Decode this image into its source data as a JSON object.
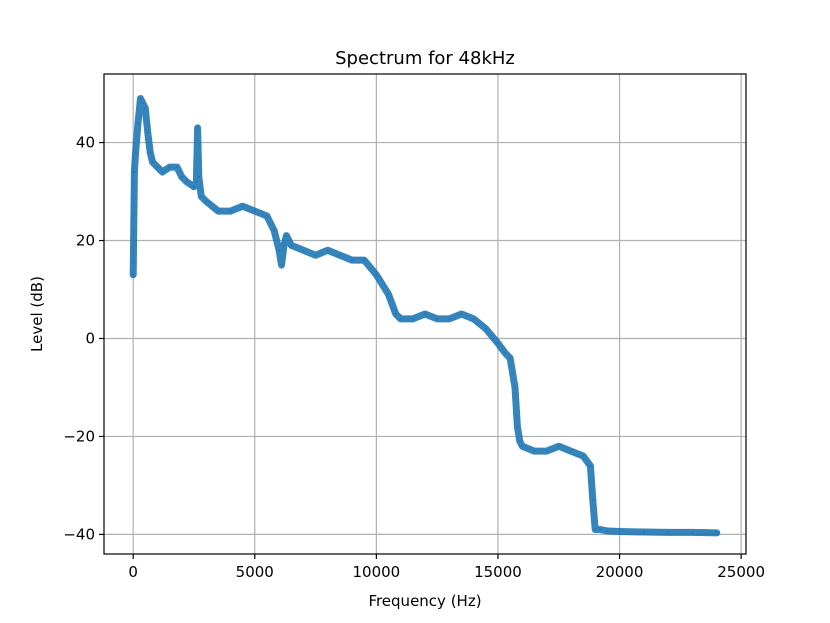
{
  "chart_data": {
    "type": "line",
    "title": "Spectrum for 48kHz",
    "xlabel": "Frequency (Hz)",
    "ylabel": "Level (dB)",
    "xlim": [
      -1200,
      25200
    ],
    "ylim": [
      -44,
      54
    ],
    "xticks": [
      0,
      5000,
      10000,
      15000,
      20000,
      25000
    ],
    "xtick_labels": [
      "0",
      "5000",
      "10000",
      "15000",
      "20000",
      "25000"
    ],
    "yticks": [
      -40,
      -20,
      0,
      20,
      40
    ],
    "ytick_labels": [
      "−40",
      "−20",
      "0",
      "20",
      "40"
    ],
    "grid": true,
    "line_color": "#1f77b4",
    "series": [
      {
        "x": [
          0,
          50,
          100,
          200,
          300,
          400,
          500,
          600,
          700,
          800,
          1000,
          1200,
          1500,
          1800,
          2000,
          2200,
          2500,
          2600,
          2650,
          2700,
          2800,
          3000,
          3500,
          4000,
          4500,
          5000,
          5500,
          5800,
          6000,
          6100,
          6200,
          6300,
          6500,
          7000,
          7500,
          8000,
          8500,
          9000,
          9500,
          10000,
          10500,
          10800,
          11000,
          11500,
          12000,
          12500,
          13000,
          13500,
          14000,
          14500,
          15000,
          15300,
          15500,
          15700,
          15800,
          15900,
          16000,
          16500,
          17000,
          17500,
          18000,
          18500,
          18800,
          18900,
          19000,
          19200,
          19500,
          20000,
          21000,
          22000,
          23000,
          24000
        ],
        "y": [
          13,
          34,
          38,
          44,
          49,
          48,
          47,
          42,
          38,
          36,
          35,
          34,
          35,
          35,
          33,
          32,
          31,
          32,
          43,
          33,
          29,
          28,
          26,
          26,
          27,
          26,
          25,
          22,
          18,
          15,
          19,
          21,
          19,
          18,
          17,
          18,
          17,
          16,
          16,
          13,
          9,
          5,
          4,
          4,
          5,
          4,
          4,
          5,
          4,
          2,
          -1,
          -3,
          -4,
          -10,
          -18,
          -21,
          -22,
          -23,
          -23,
          -22,
          -23,
          -24,
          -26,
          -33,
          -39,
          -39,
          -39.3,
          -39.4,
          -39.5,
          -39.6,
          -39.6,
          -39.7
        ]
      }
    ]
  }
}
